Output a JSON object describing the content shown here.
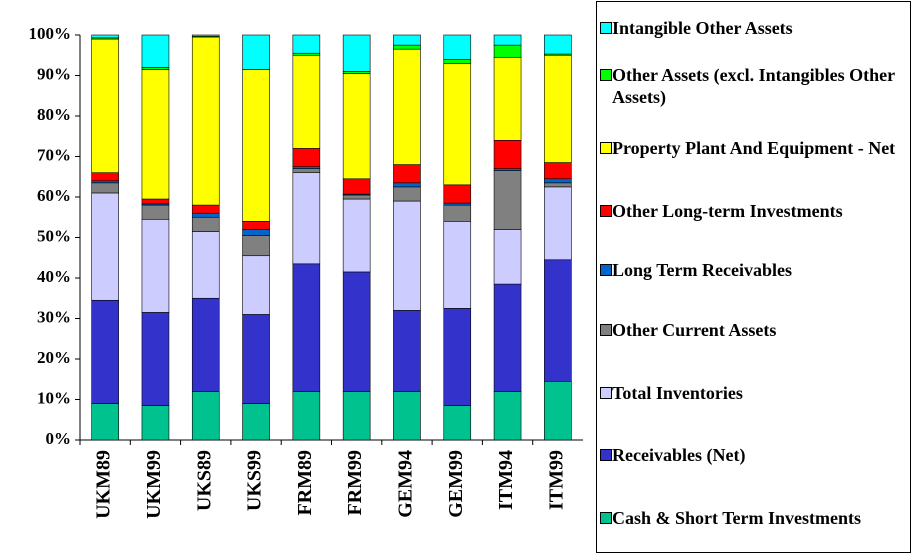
{
  "chart_data": {
    "type": "stacked-bar",
    "categories": [
      "UKM89",
      "UKM99",
      "UKS89",
      "UKS99",
      "FRM89",
      "FRM99",
      "GEM94",
      "GEM99",
      "ITM94",
      "ITM99"
    ],
    "ylim": [
      0,
      100
    ],
    "yticks": [
      {
        "value": 0,
        "label": "0%"
      },
      {
        "value": 10,
        "label": "10%"
      },
      {
        "value": 20,
        "label": "20%"
      },
      {
        "value": 30,
        "label": "30%"
      },
      {
        "value": 40,
        "label": "40%"
      },
      {
        "value": 50,
        "label": "50%"
      },
      {
        "value": 60,
        "label": "60%"
      },
      {
        "value": 70,
        "label": "70%"
      },
      {
        "value": 80,
        "label": "80%"
      },
      {
        "value": 90,
        "label": "90%"
      },
      {
        "value": 100,
        "label": "100%"
      }
    ],
    "series": [
      {
        "name": "Cash & Short Term Investments",
        "color": "#00c28e",
        "values": [
          9,
          8.5,
          12,
          9,
          12,
          12,
          12,
          8.5,
          12,
          14.5
        ]
      },
      {
        "name": "Receivables (Net)",
        "color": "#3333cc",
        "values": [
          25.5,
          23,
          23,
          22,
          31.5,
          29.5,
          20,
          24,
          26.5,
          30
        ]
      },
      {
        "name": "Total Inventories",
        "color": "#ccccff",
        "values": [
          26.5,
          23,
          16.5,
          14.5,
          22.5,
          18,
          27,
          21.5,
          13.5,
          18
        ]
      },
      {
        "name": "Other Current Assets",
        "color": "#808080",
        "values": [
          2.5,
          3.5,
          3.5,
          5,
          1,
          1,
          3.5,
          4,
          14.5,
          1
        ]
      },
      {
        "name": "Long Term Receivables",
        "color": "#0066cc",
        "values": [
          0.5,
          0.3,
          1,
          1.5,
          0.5,
          0.2,
          1,
          0.5,
          0.5,
          1
        ]
      },
      {
        "name": "Other Long-term Investments",
        "color": "#ff0000",
        "values": [
          2,
          1.2,
          2,
          2,
          4.5,
          3.8,
          4.5,
          4.5,
          7,
          4
        ]
      },
      {
        "name": "Property Plant And Equipment - Net",
        "color": "#ffff00",
        "values": [
          33,
          32,
          41.5,
          37.5,
          23,
          26,
          28.5,
          30,
          20.5,
          26.5
        ]
      },
      {
        "name": "Other Assets (excl. Intangibles Other Assets)",
        "color": "#00ff00",
        "values": [
          0.3,
          0.5,
          0.2,
          0,
          0.5,
          0.5,
          1,
          1,
          3,
          0.3
        ]
      },
      {
        "name": "Intangible Other Assets",
        "color": "#00ffff",
        "values": [
          0.7,
          8,
          0.3,
          8.5,
          4.5,
          9,
          2.5,
          6,
          2.5,
          4.7
        ]
      }
    ]
  }
}
